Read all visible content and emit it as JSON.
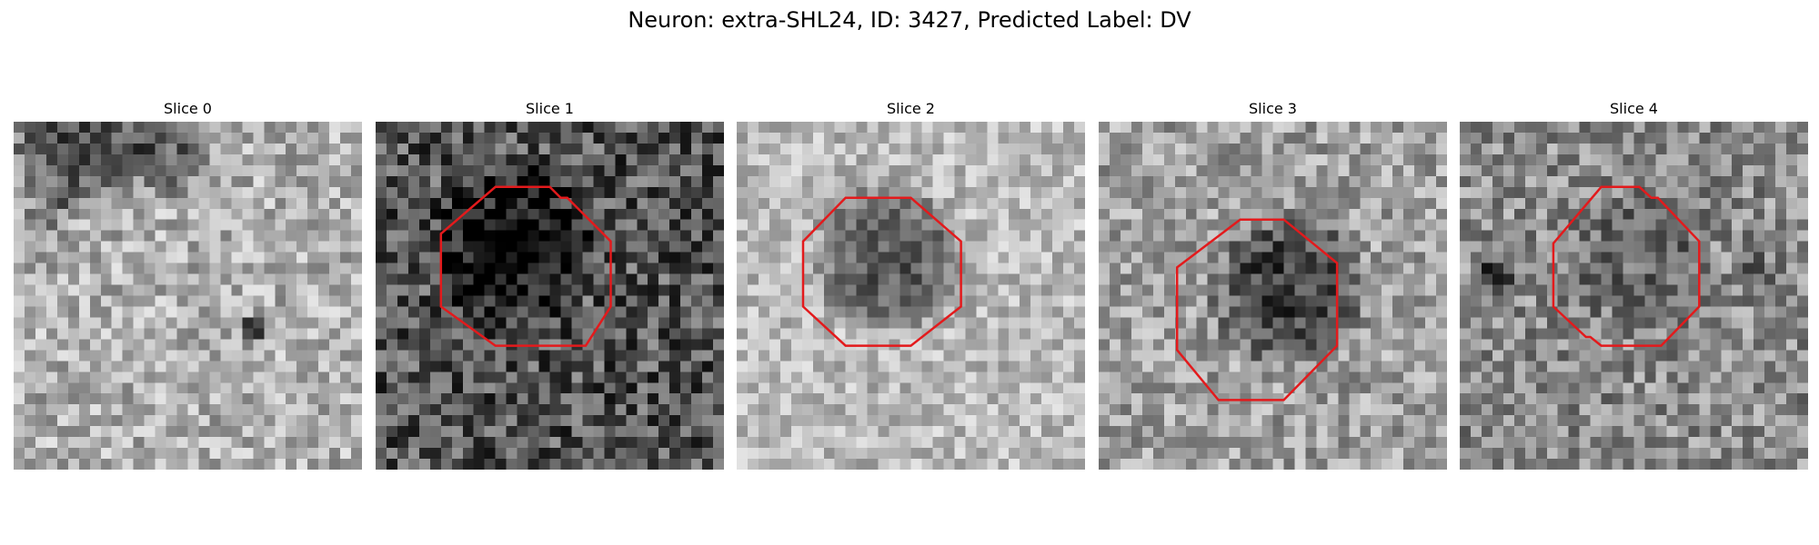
{
  "figure": {
    "title": "Neuron: extra-SHL24, ID: 3427, Predicted Label: DV"
  },
  "panels": [
    {
      "label": "Slice 0",
      "has_outline": false
    },
    {
      "label": "Slice 1",
      "has_outline": true
    },
    {
      "label": "Slice 2",
      "has_outline": true
    },
    {
      "label": "Slice 3",
      "has_outline": true
    },
    {
      "label": "Slice 4",
      "has_outline": true
    }
  ],
  "colors": {
    "outline": "#e31a1c",
    "background": "#ffffff"
  }
}
